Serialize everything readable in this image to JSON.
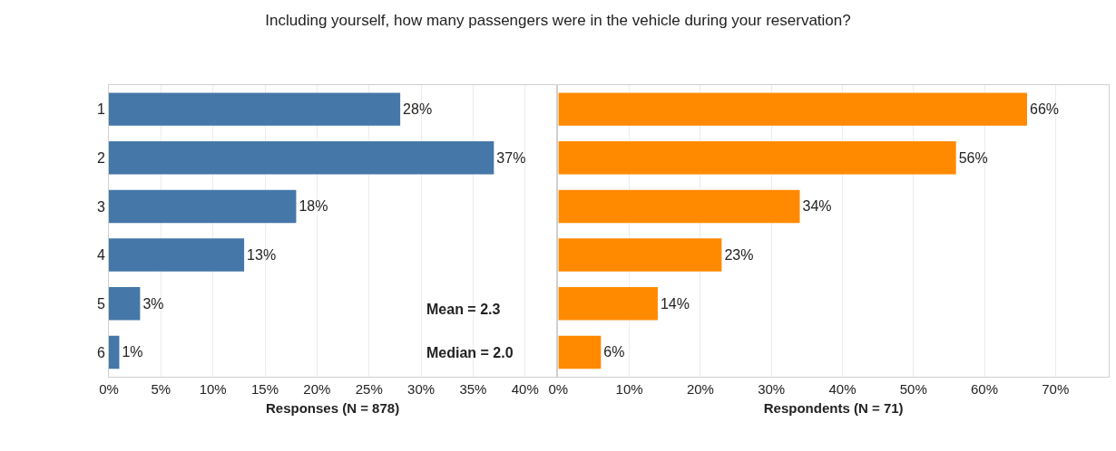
{
  "chart_data": [
    {
      "type": "bar",
      "orientation": "horizontal",
      "title": "Including yourself, how many passengers were in the vehicle during your reservation?",
      "xlabel": "Responses (N = 878)",
      "categories": [
        "1",
        "2",
        "3",
        "4",
        "5",
        "6"
      ],
      "values": [
        28,
        37,
        18,
        13,
        3,
        1
      ],
      "value_labels": [
        "28%",
        "37%",
        "18%",
        "13%",
        "3%",
        "1%"
      ],
      "color": "#4577a8",
      "xlim": [
        0,
        43
      ],
      "xticks": [
        {
          "value": 0,
          "label": "0%"
        },
        {
          "value": 5,
          "label": "5%"
        },
        {
          "value": 10,
          "label": "10%"
        },
        {
          "value": 15,
          "label": "15%"
        },
        {
          "value": 20,
          "label": "20%"
        },
        {
          "value": 25,
          "label": "25%"
        },
        {
          "value": 30,
          "label": "30%"
        },
        {
          "value": 35,
          "label": "35%"
        },
        {
          "value": 40,
          "label": "40%"
        }
      ],
      "grid": "x",
      "annotations": [
        "Mean = 2.3",
        "Median = 2.0"
      ]
    },
    {
      "type": "bar",
      "orientation": "horizontal",
      "xlabel": "Respondents (N = 71)",
      "categories": [
        "1",
        "2",
        "3",
        "4",
        "5",
        "6"
      ],
      "values": [
        66,
        56,
        34,
        23,
        14,
        6
      ],
      "value_labels": [
        "66%",
        "56%",
        "34%",
        "23%",
        "14%",
        "6%"
      ],
      "color": "#ff8a00",
      "xlim": [
        0,
        77.5
      ],
      "xticks": [
        {
          "value": 0,
          "label": "0%"
        },
        {
          "value": 10,
          "label": "10%"
        },
        {
          "value": 20,
          "label": "20%"
        },
        {
          "value": 30,
          "label": "30%"
        },
        {
          "value": 40,
          "label": "40%"
        },
        {
          "value": 50,
          "label": "50%"
        },
        {
          "value": 60,
          "label": "60%"
        },
        {
          "value": 70,
          "label": "70%"
        }
      ],
      "grid": "x",
      "tick_labels": "x"
    }
  ]
}
